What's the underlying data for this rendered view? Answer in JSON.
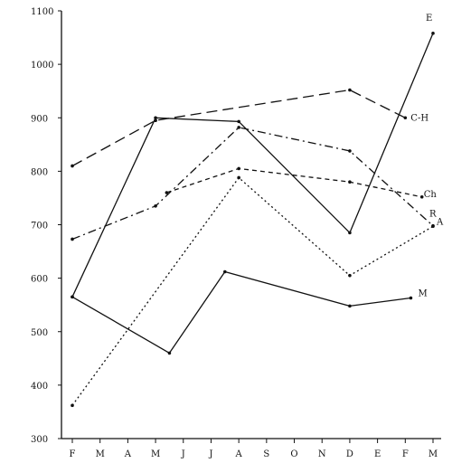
{
  "chart_data": {
    "type": "line",
    "title": "",
    "xlabel": "",
    "ylabel": "",
    "categories": [
      "F",
      "M",
      "A",
      "M",
      "J",
      "J",
      "A",
      "S",
      "O",
      "N",
      "D",
      "E",
      "F",
      "M"
    ],
    "ylim": [
      300,
      1100
    ],
    "yticks": [
      300,
      400,
      500,
      600,
      700,
      800,
      900,
      1000,
      1100
    ],
    "grid": false,
    "legend": "none (series labeled at line ends)",
    "series": [
      {
        "name": "E",
        "style": "solid",
        "points": [
          {
            "cat": 0,
            "y": 565
          },
          {
            "cat": 3,
            "y": 900
          },
          {
            "cat": 6,
            "y": 893
          },
          {
            "cat": 10,
            "y": 685
          },
          {
            "cat": 13,
            "y": 1058
          }
        ]
      },
      {
        "name": "C-H",
        "style": "long-dash",
        "points": [
          {
            "cat": 0,
            "y": 810
          },
          {
            "cat": 3,
            "y": 895
          },
          {
            "cat": 10,
            "y": 952
          },
          {
            "cat": 12,
            "y": 900
          }
        ]
      },
      {
        "name": "R",
        "style": "dash-dot",
        "points": [
          {
            "cat": 0,
            "y": 673
          },
          {
            "cat": 3,
            "y": 735
          },
          {
            "cat": 6,
            "y": 882
          },
          {
            "cat": 10,
            "y": 838
          },
          {
            "cat": 13,
            "y": 698
          }
        ]
      },
      {
        "name": "Ch",
        "style": "short-dash",
        "points": [
          {
            "cat": 3.4,
            "y": 760
          },
          {
            "cat": 6,
            "y": 805
          },
          {
            "cat": 10,
            "y": 780
          },
          {
            "cat": 12.6,
            "y": 752
          }
        ]
      },
      {
        "name": "A",
        "style": "dotted",
        "points": [
          {
            "cat": 0,
            "y": 362
          },
          {
            "cat": 6,
            "y": 788
          },
          {
            "cat": 10,
            "y": 605
          },
          {
            "cat": 13,
            "y": 697
          }
        ]
      },
      {
        "name": "M",
        "style": "solid",
        "points": [
          {
            "cat": 0,
            "y": 565
          },
          {
            "cat": 3.5,
            "y": 460
          },
          {
            "cat": 5.5,
            "y": 612
          },
          {
            "cat": 10,
            "y": 548
          },
          {
            "cat": 12.2,
            "y": 563
          }
        ]
      }
    ],
    "colors": {
      "ink": "#111111",
      "background": "#ffffff"
    }
  }
}
